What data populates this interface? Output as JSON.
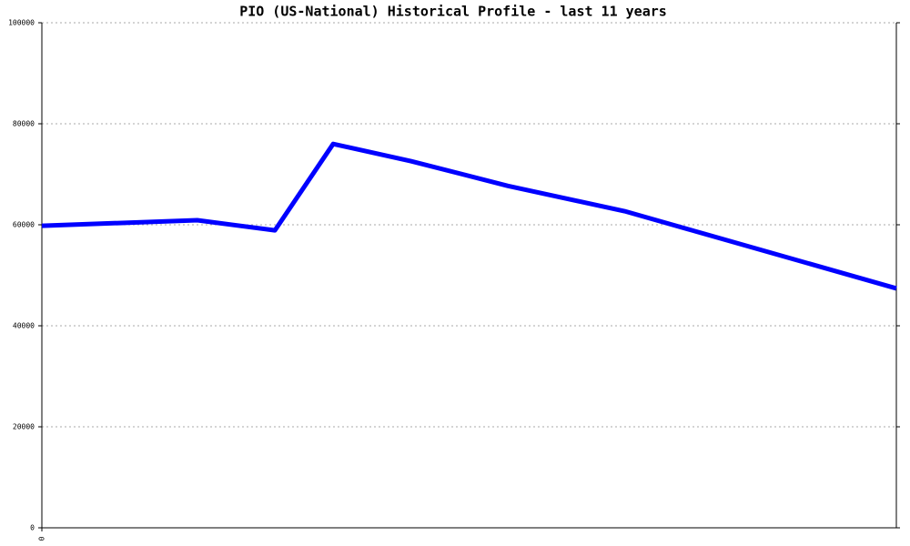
{
  "chart_data": {
    "type": "line",
    "title": "PIO (US-National) Historical Profile - last 11 years",
    "x": [
      0,
      2,
      3,
      3.75,
      4.75,
      6,
      7.5,
      11
    ],
    "series": [
      {
        "name": "PIO",
        "color": "#0000ff",
        "values": [
          59800,
          60900,
          58900,
          76000,
          72600,
          67700,
          62700,
          47400
        ]
      }
    ],
    "xlim": [
      0,
      11
    ],
    "xticks": [
      0
    ],
    "ylim": [
      0,
      100000
    ],
    "yticks": [
      0,
      20000,
      40000,
      60000,
      80000,
      100000
    ],
    "grid": true
  }
}
